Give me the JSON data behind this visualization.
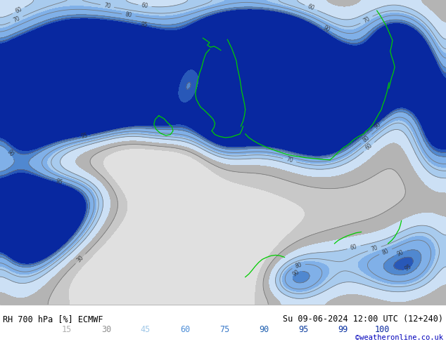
{
  "title_left": "RH 700 hPa [%] ECMWF",
  "title_right": "Su 09-06-2024 12:00 UTC (12+240)",
  "credit": "©weatheronline.co.uk",
  "colorbar_levels": [
    15,
    30,
    45,
    60,
    75,
    90,
    95,
    99,
    100
  ],
  "colors_fill": [
    "#e0e0e0",
    "#c8c8c8",
    "#b4b4b4",
    "#cce0f5",
    "#a8cbee",
    "#80b0e8",
    "#5088d0",
    "#2858b8",
    "#0828a0"
  ],
  "contour_color": "#707070",
  "contour_levels": [
    30,
    60,
    70,
    80,
    90,
    95
  ],
  "coast_color": "#00cc00",
  "background_color": "#ffffff",
  "label_colors": [
    "#b0b0b0",
    "#909090",
    "#a0c8e8",
    "#5090d8",
    "#3878c8",
    "#2060b0",
    "#1040a0",
    "#0830a0",
    "#0828a0"
  ],
  "label_texts": [
    "15",
    "30",
    "45",
    "60",
    "75",
    "90",
    "95",
    "99",
    "100"
  ],
  "fig_width": 6.34,
  "fig_height": 4.9,
  "dpi": 100
}
